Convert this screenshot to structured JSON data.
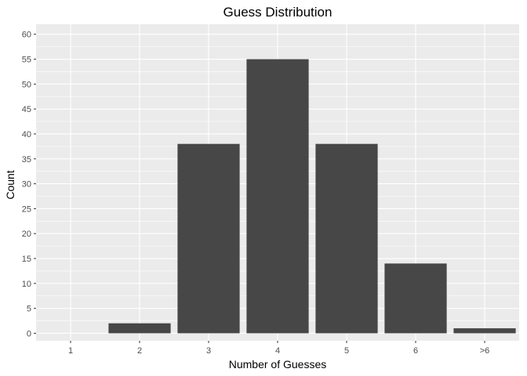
{
  "chart_data": {
    "type": "bar",
    "title": "Guess Distribution",
    "xlabel": "Number of Guesses",
    "ylabel": "Count",
    "categories": [
      "1",
      "2",
      "3",
      "4",
      "5",
      "6",
      ">6"
    ],
    "values": [
      0,
      2,
      38,
      55,
      38,
      14,
      1
    ],
    "ylim": [
      -1.5,
      62
    ],
    "yticks": [
      0,
      5,
      10,
      15,
      20,
      25,
      30,
      35,
      40,
      45,
      50,
      55,
      60
    ],
    "grid": true,
    "legend": "none",
    "colors": {
      "panel_background": "#ebebeb",
      "grid_major": "#ffffff",
      "bar_fill": "#474747",
      "tick_text": "#4d4d4d"
    }
  }
}
